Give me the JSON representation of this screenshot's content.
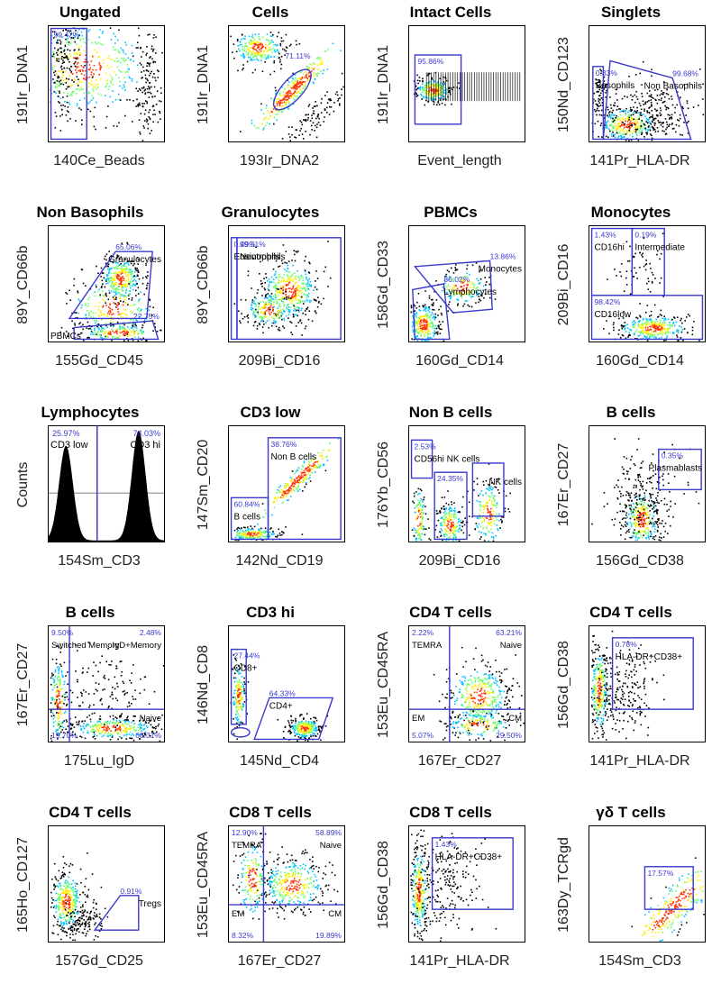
{
  "colors": {
    "gate": "#3a3acc",
    "percent": "#3a3acc",
    "density_high": "#ff3300",
    "density_mid": "#ffee00",
    "density_low": "#00c0ff",
    "dots": "#000000"
  },
  "chart_data": [
    {
      "type": "scatter",
      "title": "Ungated",
      "xlabel": "140Ce_Beads",
      "ylabel": "191Ir_DNA1",
      "gates": [
        {
          "kind": "rect",
          "x1": 0.02,
          "y1": 0.02,
          "x2": 0.33,
          "y2": 0.98,
          "percent": "99.42%",
          "label": ""
        }
      ],
      "clusters": [
        {
          "cx": 0.3,
          "cy": 0.35,
          "sx": 0.32,
          "sy": 0.22,
          "n": 520,
          "density": true
        },
        {
          "cx": 0.12,
          "cy": 0.2,
          "sx": 0.08,
          "sy": 0.3,
          "n": 180,
          "density": false
        },
        {
          "cx": 0.85,
          "cy": 0.55,
          "sx": 0.05,
          "sy": 0.25,
          "n": 120,
          "density": false
        }
      ]
    },
    {
      "type": "scatter",
      "title": "Cells",
      "xlabel": "193Ir_DNA2",
      "ylabel": "191Ir_DNA1",
      "gates": [
        {
          "kind": "ellipse",
          "cx": 0.55,
          "cy": 0.55,
          "rx": 0.22,
          "ry": 0.09,
          "rot": -48,
          "percent": "71.11%",
          "label": ""
        }
      ],
      "clusters": [
        {
          "cx": 0.55,
          "cy": 0.55,
          "sx": 0.08,
          "sy": 0.08,
          "n": 300,
          "density": true,
          "diag": true
        },
        {
          "cx": 0.25,
          "cy": 0.18,
          "sx": 0.12,
          "sy": 0.08,
          "n": 260,
          "density": true
        },
        {
          "cx": 0.75,
          "cy": 0.78,
          "sx": 0.1,
          "sy": 0.1,
          "n": 120,
          "density": false,
          "diag": true
        }
      ]
    },
    {
      "type": "scatter",
      "title": "Intact Cells",
      "xlabel": "Event_length",
      "ylabel": "191Ir_DNA1",
      "gates": [
        {
          "kind": "rect",
          "x1": 0.05,
          "y1": 0.25,
          "x2": 0.45,
          "y2": 0.85,
          "percent": "95.86%",
          "label": ""
        }
      ],
      "clusters": [
        {
          "cx": 0.2,
          "cy": 0.55,
          "sx": 0.08,
          "sy": 0.06,
          "n": 260,
          "density": true
        }
      ],
      "stripes": {
        "x1": 0.15,
        "x2": 0.98,
        "y1": 0.4,
        "y2": 0.65,
        "n": 40
      }
    },
    {
      "type": "scatter",
      "title": "Singlets",
      "xlabel": "141Pr_HLA-DR",
      "ylabel": "150Nd_CD123",
      "gates": [
        {
          "kind": "rect",
          "x1": 0.03,
          "y1": 0.35,
          "x2": 0.12,
          "y2": 0.98,
          "percent": "0.33%",
          "label": "Basophils"
        },
        {
          "kind": "poly",
          "points": [
            [
              0.18,
              0.3
            ],
            [
              0.72,
              0.45
            ],
            [
              0.88,
              0.98
            ],
            [
              0.12,
              0.98
            ]
          ],
          "percent": "99.68%",
          "label": "Non Basophils"
        }
      ],
      "clusters": [
        {
          "cx": 0.32,
          "cy": 0.85,
          "sx": 0.14,
          "sy": 0.08,
          "n": 300,
          "density": true
        },
        {
          "cx": 0.08,
          "cy": 0.55,
          "sx": 0.03,
          "sy": 0.08,
          "n": 60,
          "density": false
        },
        {
          "cx": 0.5,
          "cy": 0.75,
          "sx": 0.2,
          "sy": 0.15,
          "n": 260,
          "density": false
        }
      ]
    },
    {
      "type": "scatter",
      "title": "Non Basophils",
      "xlabel": "155Gd_CD45",
      "ylabel": "89Y_CD66b",
      "gates": [
        {
          "kind": "poly",
          "points": [
            [
              0.18,
              0.8
            ],
            [
              0.58,
              0.22
            ],
            [
              0.9,
              0.22
            ],
            [
              0.85,
              0.8
            ]
          ],
          "percent": "65.06%",
          "label": "Granulocytes"
        },
        {
          "kind": "poly",
          "points": [
            [
              0.22,
              0.88
            ],
            [
              0.9,
              0.82
            ],
            [
              0.95,
              0.98
            ],
            [
              0.22,
              0.98
            ]
          ],
          "percent": "22.75%",
          "label": "PBMCs"
        }
      ],
      "clusters": [
        {
          "cx": 0.62,
          "cy": 0.45,
          "sx": 0.09,
          "sy": 0.1,
          "n": 320,
          "density": true
        },
        {
          "cx": 0.55,
          "cy": 0.7,
          "sx": 0.2,
          "sy": 0.14,
          "n": 240,
          "density": true
        },
        {
          "cx": 0.6,
          "cy": 0.92,
          "sx": 0.18,
          "sy": 0.04,
          "n": 200,
          "density": true
        }
      ]
    },
    {
      "type": "scatter",
      "title": "Granulocytes",
      "xlabel": "209Bi_CD16",
      "ylabel": "89Y_CD66b",
      "gates": [
        {
          "kind": "rect",
          "x1": 0.02,
          "y1": 0.1,
          "x2": 0.07,
          "y2": 0.98,
          "percent": "0.49%",
          "label": "Eosinophils"
        },
        {
          "kind": "rect",
          "x1": 0.07,
          "y1": 0.1,
          "x2": 0.97,
          "y2": 0.98,
          "percent": "99.51%",
          "label": "Neutrophils"
        }
      ],
      "clusters": [
        {
          "cx": 0.52,
          "cy": 0.55,
          "sx": 0.13,
          "sy": 0.14,
          "n": 400,
          "density": true
        },
        {
          "cx": 0.35,
          "cy": 0.72,
          "sx": 0.12,
          "sy": 0.08,
          "n": 200,
          "density": true
        }
      ]
    },
    {
      "type": "scatter",
      "title": "PBMCs",
      "xlabel": "160Gd_CD14",
      "ylabel": "158Gd_CD33",
      "gates": [
        {
          "kind": "poly",
          "points": [
            [
              0.05,
              0.35
            ],
            [
              0.7,
              0.3
            ],
            [
              0.72,
              0.72
            ],
            [
              0.38,
              0.75
            ]
          ],
          "percent": "13.86%",
          "label": "Monocytes"
        },
        {
          "kind": "poly",
          "points": [
            [
              0.03,
              0.55
            ],
            [
              0.3,
              0.5
            ],
            [
              0.35,
              0.98
            ],
            [
              0.05,
              0.98
            ]
          ],
          "percent": "86.02%",
          "label": "Lymphocytes"
        }
      ],
      "clusters": [
        {
          "cx": 0.12,
          "cy": 0.85,
          "sx": 0.07,
          "sy": 0.1,
          "n": 300,
          "density": true
        },
        {
          "cx": 0.45,
          "cy": 0.52,
          "sx": 0.12,
          "sy": 0.08,
          "n": 180,
          "density": true
        }
      ]
    },
    {
      "type": "scatter",
      "title": "Monocytes",
      "xlabel": "160Gd_CD14",
      "ylabel": "209Bi_CD16",
      "gates": [
        {
          "kind": "rect",
          "x1": 0.02,
          "y1": 0.02,
          "x2": 0.37,
          "y2": 0.6,
          "percent": "1.43%",
          "label": "CD16hi"
        },
        {
          "kind": "rect",
          "x1": 0.37,
          "y1": 0.02,
          "x2": 0.65,
          "y2": 0.6,
          "percent": "0.19%",
          "label": "Intermediate"
        },
        {
          "kind": "rect",
          "x1": 0.02,
          "y1": 0.6,
          "x2": 0.98,
          "y2": 0.98,
          "percent": "98.42%",
          "label": "CD16low"
        }
      ],
      "clusters": [
        {
          "cx": 0.55,
          "cy": 0.88,
          "sx": 0.16,
          "sy": 0.06,
          "n": 340,
          "density": true
        },
        {
          "cx": 0.45,
          "cy": 0.35,
          "sx": 0.1,
          "sy": 0.12,
          "n": 60,
          "density": false
        }
      ]
    },
    {
      "type": "histogram",
      "title": "Lymphocytes",
      "xlabel": "154Sm_CD3",
      "ylabel": "Counts",
      "split": 0.42,
      "peaks": [
        {
          "mu": 0.15,
          "sigma": 0.06,
          "h": 0.82
        },
        {
          "mu": 0.78,
          "sigma": 0.06,
          "h": 0.95
        }
      ],
      "regions": [
        {
          "label": "CD3 low",
          "percent": "25.97%"
        },
        {
          "label": "CD3 hi",
          "percent": "74.03%"
        }
      ]
    },
    {
      "type": "scatter",
      "title": "CD3 low",
      "xlabel": "142Nd_CD19",
      "ylabel": "147Sm_CD20",
      "gates": [
        {
          "kind": "rect",
          "x1": 0.34,
          "y1": 0.1,
          "x2": 0.97,
          "y2": 0.98,
          "percent": "38.76%",
          "label": "Non B cells"
        },
        {
          "kind": "rect",
          "x1": 0.02,
          "y1": 0.62,
          "x2": 0.34,
          "y2": 0.98,
          "percent": "60.84%",
          "label": "B cells"
        }
      ],
      "clusters": [
        {
          "cx": 0.6,
          "cy": 0.45,
          "sx": 0.07,
          "sy": 0.07,
          "n": 240,
          "density": true,
          "diag": true
        },
        {
          "cx": 0.2,
          "cy": 0.93,
          "sx": 0.12,
          "sy": 0.03,
          "n": 200,
          "density": true
        }
      ]
    },
    {
      "type": "scatter",
      "title": "Non B cells",
      "xlabel": "209Bi_CD16",
      "ylabel": "176Yb_CD56",
      "gates": [
        {
          "kind": "rect",
          "x1": 0.02,
          "y1": 0.12,
          "x2": 0.2,
          "y2": 0.45,
          "percent": "2.53%",
          "label": "CD56hi NK cells"
        },
        {
          "kind": "rect",
          "x1": 0.22,
          "y1": 0.4,
          "x2": 0.5,
          "y2": 0.98,
          "percent": "24.35%",
          "label": ""
        },
        {
          "kind": "rect",
          "x1": 0.55,
          "y1": 0.32,
          "x2": 0.82,
          "y2": 0.78,
          "percent": "",
          "label": "NK cells"
        }
      ],
      "clusters": [
        {
          "cx": 0.35,
          "cy": 0.85,
          "sx": 0.06,
          "sy": 0.1,
          "n": 220,
          "density": true
        },
        {
          "cx": 0.68,
          "cy": 0.75,
          "sx": 0.07,
          "sy": 0.15,
          "n": 180,
          "density": true
        },
        {
          "cx": 0.08,
          "cy": 0.8,
          "sx": 0.03,
          "sy": 0.15,
          "n": 120,
          "density": true
        }
      ]
    },
    {
      "type": "scatter",
      "title": "B cells",
      "xlabel": "156Gd_CD38",
      "ylabel": "167Er_CD27",
      "gates": [
        {
          "kind": "rect",
          "x1": 0.6,
          "y1": 0.2,
          "x2": 0.97,
          "y2": 0.55,
          "percent": "0.35%",
          "label": "Plasmablasts"
        }
      ],
      "clusters": [
        {
          "cx": 0.45,
          "cy": 0.8,
          "sx": 0.08,
          "sy": 0.14,
          "n": 320,
          "density": true
        },
        {
          "cx": 0.45,
          "cy": 0.6,
          "sx": 0.18,
          "sy": 0.18,
          "n": 200,
          "density": false
        }
      ]
    },
    {
      "type": "scatter",
      "title": "B cells",
      "xlabel": "175Lu_IgD",
      "ylabel": "167Er_CD27",
      "quad": {
        "x": 0.18,
        "y": 0.72
      },
      "quadrants": [
        {
          "pos": "tl",
          "percent": "9.50%",
          "label": "Switched Memory"
        },
        {
          "pos": "tr",
          "percent": "2.48%",
          "label": "IgD+Memory"
        },
        {
          "pos": "bl",
          "percent": "19.70%",
          "label": ""
        },
        {
          "pos": "br",
          "percent": "68.31%",
          "label": "Naive"
        }
      ],
      "clusters": [
        {
          "cx": 0.55,
          "cy": 0.88,
          "sx": 0.2,
          "sy": 0.05,
          "n": 300,
          "density": true
        },
        {
          "cx": 0.08,
          "cy": 0.65,
          "sx": 0.04,
          "sy": 0.2,
          "n": 200,
          "density": true
        },
        {
          "cx": 0.45,
          "cy": 0.55,
          "sx": 0.25,
          "sy": 0.2,
          "n": 160,
          "density": false
        }
      ]
    },
    {
      "type": "scatter",
      "title": "CD3 hi",
      "xlabel": "145Nd_CD4",
      "ylabel": "146Nd_CD8",
      "gates": [
        {
          "kind": "rect",
          "x1": 0.02,
          "y1": 0.2,
          "x2": 0.15,
          "y2": 0.85,
          "percent": "27.44%",
          "label": "CD8+"
        },
        {
          "kind": "poly",
          "points": [
            [
              0.22,
              0.98
            ],
            [
              0.35,
              0.62
            ],
            [
              0.9,
              0.62
            ],
            [
              0.78,
              0.98
            ]
          ],
          "percent": "64.33%",
          "label": "CD4+"
        },
        {
          "kind": "ellipse",
          "cx": 0.1,
          "cy": 0.92,
          "rx": 0.08,
          "ry": 0.04,
          "rot": 0,
          "percent": "",
          "label": ""
        }
      ],
      "clusters": [
        {
          "cx": 0.65,
          "cy": 0.88,
          "sx": 0.07,
          "sy": 0.05,
          "n": 260,
          "density": true
        },
        {
          "cx": 0.08,
          "cy": 0.6,
          "sx": 0.03,
          "sy": 0.15,
          "n": 160,
          "density": true
        }
      ]
    },
    {
      "type": "scatter",
      "title": "CD4 T cells",
      "xlabel": "167Er_CD27",
      "ylabel": "153Eu_CD45RA",
      "quad": {
        "x": 0.35,
        "y": 0.72
      },
      "quadrants": [
        {
          "pos": "tl",
          "percent": "2.22%",
          "label": "TEMRA"
        },
        {
          "pos": "tr",
          "percent": "63.21%",
          "label": "Naive"
        },
        {
          "pos": "bl",
          "percent": "5.07%",
          "label": "EM"
        },
        {
          "pos": "br",
          "percent": "29.50%",
          "label": "CM"
        }
      ],
      "clusters": [
        {
          "cx": 0.6,
          "cy": 0.6,
          "sx": 0.14,
          "sy": 0.14,
          "n": 380,
          "density": true
        },
        {
          "cx": 0.6,
          "cy": 0.85,
          "sx": 0.15,
          "sy": 0.06,
          "n": 160,
          "density": true
        }
      ]
    },
    {
      "type": "scatter",
      "title": "CD4 T cells",
      "xlabel": "141Pr_HLA-DR",
      "ylabel": "156Gd_CD38",
      "gates": [
        {
          "kind": "rect",
          "x1": 0.2,
          "y1": 0.1,
          "x2": 0.9,
          "y2": 0.72,
          "percent": "0.78%",
          "label": "HLA-DR+CD38+"
        }
      ],
      "clusters": [
        {
          "cx": 0.08,
          "cy": 0.55,
          "sx": 0.04,
          "sy": 0.2,
          "n": 300,
          "density": true
        },
        {
          "cx": 0.3,
          "cy": 0.55,
          "sx": 0.15,
          "sy": 0.2,
          "n": 220,
          "density": false
        }
      ]
    },
    {
      "type": "scatter",
      "title": "CD4 T cells",
      "xlabel": "157Gd_CD25",
      "ylabel": "165Ho_CD127",
      "gates": [
        {
          "kind": "poly",
          "points": [
            [
              0.4,
              0.9
            ],
            [
              0.62,
              0.6
            ],
            [
              0.78,
              0.6
            ],
            [
              0.78,
              0.9
            ]
          ],
          "percent": "0.91%",
          "label": "Tregs"
        }
      ],
      "clusters": [
        {
          "cx": 0.15,
          "cy": 0.65,
          "sx": 0.07,
          "sy": 0.14,
          "n": 380,
          "density": true
        },
        {
          "cx": 0.3,
          "cy": 0.8,
          "sx": 0.08,
          "sy": 0.08,
          "n": 120,
          "density": false
        }
      ]
    },
    {
      "type": "scatter",
      "title": "CD8 T cells",
      "xlabel": "167Er_CD27",
      "ylabel": "153Eu_CD45RA",
      "quad": {
        "x": 0.3,
        "y": 0.68
      },
      "quadrants": [
        {
          "pos": "tl",
          "percent": "12.90%",
          "label": "TEMRA"
        },
        {
          "pos": "tr",
          "percent": "58.89%",
          "label": "Naive"
        },
        {
          "pos": "bl",
          "percent": "8.32%",
          "label": "EM"
        },
        {
          "pos": "br",
          "percent": "19.89%",
          "label": "CM"
        }
      ],
      "clusters": [
        {
          "cx": 0.55,
          "cy": 0.5,
          "sx": 0.15,
          "sy": 0.12,
          "n": 360,
          "density": true
        },
        {
          "cx": 0.2,
          "cy": 0.45,
          "sx": 0.07,
          "sy": 0.18,
          "n": 180,
          "density": true
        }
      ]
    },
    {
      "type": "scatter",
      "title": "CD8 T cells",
      "xlabel": "141Pr_HLA-DR",
      "ylabel": "156Gd_CD38",
      "gates": [
        {
          "kind": "rect",
          "x1": 0.2,
          "y1": 0.1,
          "x2": 0.9,
          "y2": 0.72,
          "percent": "1.43%",
          "label": "HLA-DR+CD38+"
        }
      ],
      "clusters": [
        {
          "cx": 0.08,
          "cy": 0.55,
          "sx": 0.04,
          "sy": 0.2,
          "n": 300,
          "density": true
        },
        {
          "cx": 0.3,
          "cy": 0.5,
          "sx": 0.18,
          "sy": 0.22,
          "n": 220,
          "density": false
        }
      ]
    },
    {
      "type": "scatter",
      "title": "γδ T cells",
      "xlabel": "154Sm_CD3",
      "ylabel": "163Dy_TCRgd",
      "gates": [
        {
          "kind": "rect",
          "x1": 0.48,
          "y1": 0.35,
          "x2": 0.9,
          "y2": 0.72,
          "percent": "17.57%",
          "label": ""
        }
      ],
      "clusters": [
        {
          "cx": 0.72,
          "cy": 0.7,
          "sx": 0.08,
          "sy": 0.2,
          "n": 260,
          "density": true,
          "diag": true
        }
      ]
    }
  ]
}
